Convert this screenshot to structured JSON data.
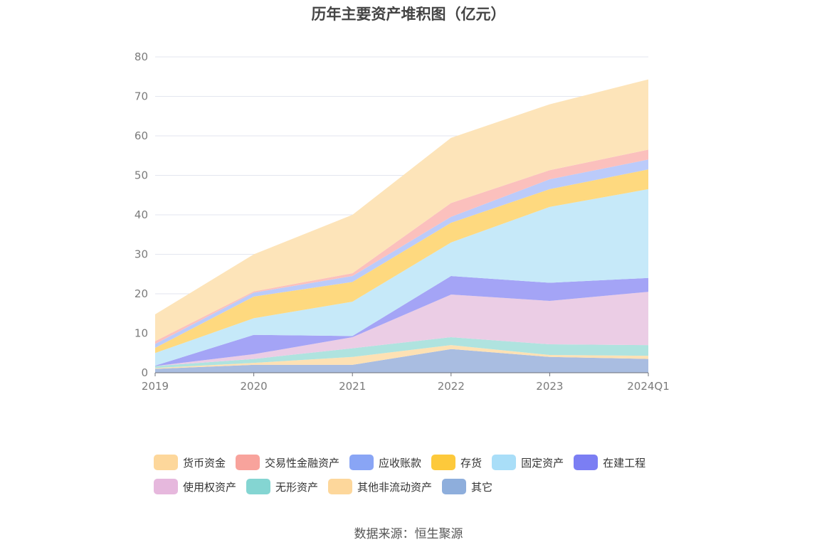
{
  "chart_data": {
    "type": "area",
    "stacked": true,
    "title": "历年主要资产堆积图（亿元）",
    "source": "数据来源：恒生聚源",
    "x": [
      "2019",
      "2020",
      "2021",
      "2022",
      "2023",
      "2024Q1"
    ],
    "ylim": [
      0,
      80
    ],
    "yticks": [
      "0",
      "10",
      "20",
      "30",
      "40",
      "50",
      "60",
      "70",
      "80"
    ],
    "grid": true,
    "legend_position": "bottom",
    "series": [
      {
        "name": "其它",
        "color": "#a9bde1",
        "values": [
          1.0,
          2.0,
          2.0,
          6.0,
          4.0,
          3.5
        ]
      },
      {
        "name": "其他非流动资产",
        "color": "#fde1b4",
        "values": [
          0.2,
          0.5,
          2.0,
          1.0,
          0.5,
          0.8
        ]
      },
      {
        "name": "无形资产",
        "color": "#afe3df",
        "values": [
          0.5,
          1.0,
          2.2,
          2.0,
          2.7,
          2.7
        ]
      },
      {
        "name": "使用权资产",
        "color": "#ebcde5",
        "values": [
          0.0,
          1.2,
          2.8,
          10.8,
          11.0,
          13.5
        ]
      },
      {
        "name": "在建工程",
        "color": "#a4a4f6",
        "values": [
          0.1,
          4.9,
          0.3,
          4.7,
          4.6,
          3.5
        ]
      },
      {
        "name": "固定资产",
        "color": "#c6e9f9",
        "values": [
          3.2,
          4.2,
          8.7,
          8.5,
          19.2,
          22.5
        ]
      },
      {
        "name": "存货",
        "color": "#fed97f",
        "values": [
          1.3,
          5.5,
          5.0,
          5.0,
          4.5,
          5.0
        ]
      },
      {
        "name": "应收账款",
        "color": "#bbcbfa",
        "values": [
          1.0,
          1.0,
          1.5,
          1.5,
          2.5,
          2.5
        ]
      },
      {
        "name": "交易性金融资产",
        "color": "#fbc0bd",
        "values": [
          0.7,
          0.3,
          0.7,
          3.5,
          2.3,
          2.5
        ]
      },
      {
        "name": "货币资金",
        "color": "#fde4b9",
        "values": [
          6.8,
          9.4,
          14.8,
          16.5,
          16.7,
          17.8
        ]
      }
    ]
  },
  "legend": [
    {
      "label": "货币资金",
      "color": "#fdd79b"
    },
    {
      "label": "交易性金融资产",
      "color": "#f8a39c"
    },
    {
      "label": "应收账款",
      "color": "#89a5f5"
    },
    {
      "label": "存货",
      "color": "#fdc93b"
    },
    {
      "label": "固定资产",
      "color": "#a9def8"
    },
    {
      "label": "在建工程",
      "color": "#7b7ef3"
    },
    {
      "label": "使用权资产",
      "color": "#e6b8dd"
    },
    {
      "label": "无形资产",
      "color": "#84d5d2"
    },
    {
      "label": "其他非流动资产",
      "color": "#fdd79b"
    },
    {
      "label": "其它",
      "color": "#8eaedc"
    }
  ]
}
